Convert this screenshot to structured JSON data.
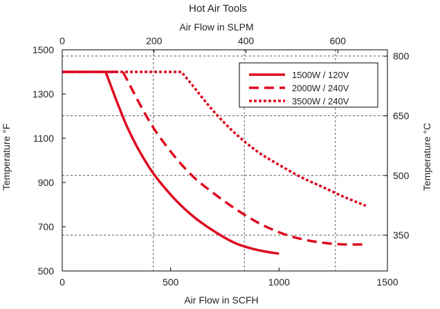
{
  "chart_data": {
    "type": "line",
    "title": "Hot Air Tools",
    "x_bottom": {
      "label": "Air Flow in SCFH",
      "range": [
        0,
        1500
      ],
      "ticks": [
        0,
        500,
        1000,
        1500
      ],
      "grid": [
        420,
        840,
        1260
      ]
    },
    "x_top": {
      "label": "Air Flow in SLPM",
      "range": [
        0,
        708
      ],
      "ticks": [
        0,
        200,
        400,
        600
      ]
    },
    "y_left": {
      "label": "Temperature °F",
      "range": [
        500,
        1500
      ],
      "ticks": [
        500,
        700,
        900,
        1100,
        1300,
        1500
      ],
      "grid": [
        662,
        932,
        1202,
        1472
      ]
    },
    "y_right": {
      "label": "Temperature °C",
      "range": [
        260,
        816
      ],
      "ticks": [
        350,
        500,
        650,
        800
      ]
    },
    "legend_position": "top-right",
    "series": [
      {
        "name": "1500W / 120V",
        "style": "solid",
        "x": [
          0,
          200,
          300,
          400,
          500,
          600,
          700,
          800,
          900,
          1000
        ],
        "y": [
          1400,
          1400,
          1150,
          970,
          845,
          750,
          680,
          625,
          595,
          578
        ]
      },
      {
        "name": "2000W / 240V",
        "style": "dashed",
        "x": [
          0,
          280,
          400,
          500,
          600,
          700,
          800,
          900,
          1000,
          1100,
          1200,
          1300,
          1400
        ],
        "y": [
          1400,
          1400,
          1180,
          1040,
          930,
          850,
          780,
          720,
          675,
          645,
          628,
          620,
          620
        ]
      },
      {
        "name": "3500W / 240V",
        "style": "dotted",
        "x": [
          0,
          550,
          600,
          700,
          800,
          900,
          1000,
          1100,
          1200,
          1300,
          1400
        ],
        "y": [
          1400,
          1400,
          1340,
          1220,
          1120,
          1040,
          980,
          925,
          880,
          835,
          795
        ]
      }
    ]
  },
  "colors": {
    "series": "#dd0a1e",
    "grid": "#555555",
    "axis": "#000000",
    "text": "#222222"
  }
}
